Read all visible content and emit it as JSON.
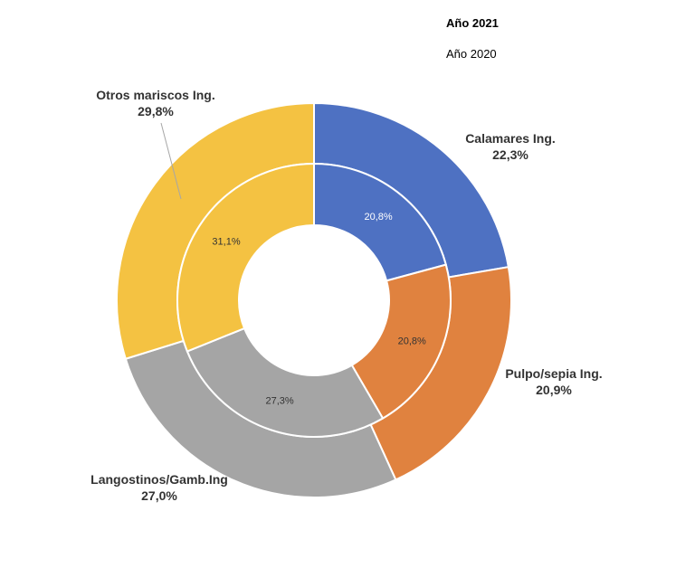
{
  "chart_data": {
    "type": "pie",
    "variant": "double-donut",
    "legend": [
      "Año 2021",
      "Año 2020"
    ],
    "categories": [
      "Calamares Ing.",
      "Pulpo/sepia Ing.",
      "Langostinos/Gamb.Ing",
      "Otros mariscos Ing."
    ],
    "colors": [
      "#4e71c2",
      "#e0823f",
      "#a5a5a5",
      "#f4c242"
    ],
    "series": [
      {
        "name": "Año 2021",
        "ring": "outer",
        "values": [
          22.3,
          20.9,
          27.0,
          29.8
        ],
        "labels": [
          "22,3%",
          "20,9%",
          "27,0%",
          "29,8%"
        ]
      },
      {
        "name": "Año 2020",
        "ring": "inner",
        "values": [
          20.8,
          20.8,
          27.3,
          31.1
        ],
        "labels": [
          "20,8%",
          "20,8%",
          "27,3%",
          "31,1%"
        ]
      }
    ]
  }
}
